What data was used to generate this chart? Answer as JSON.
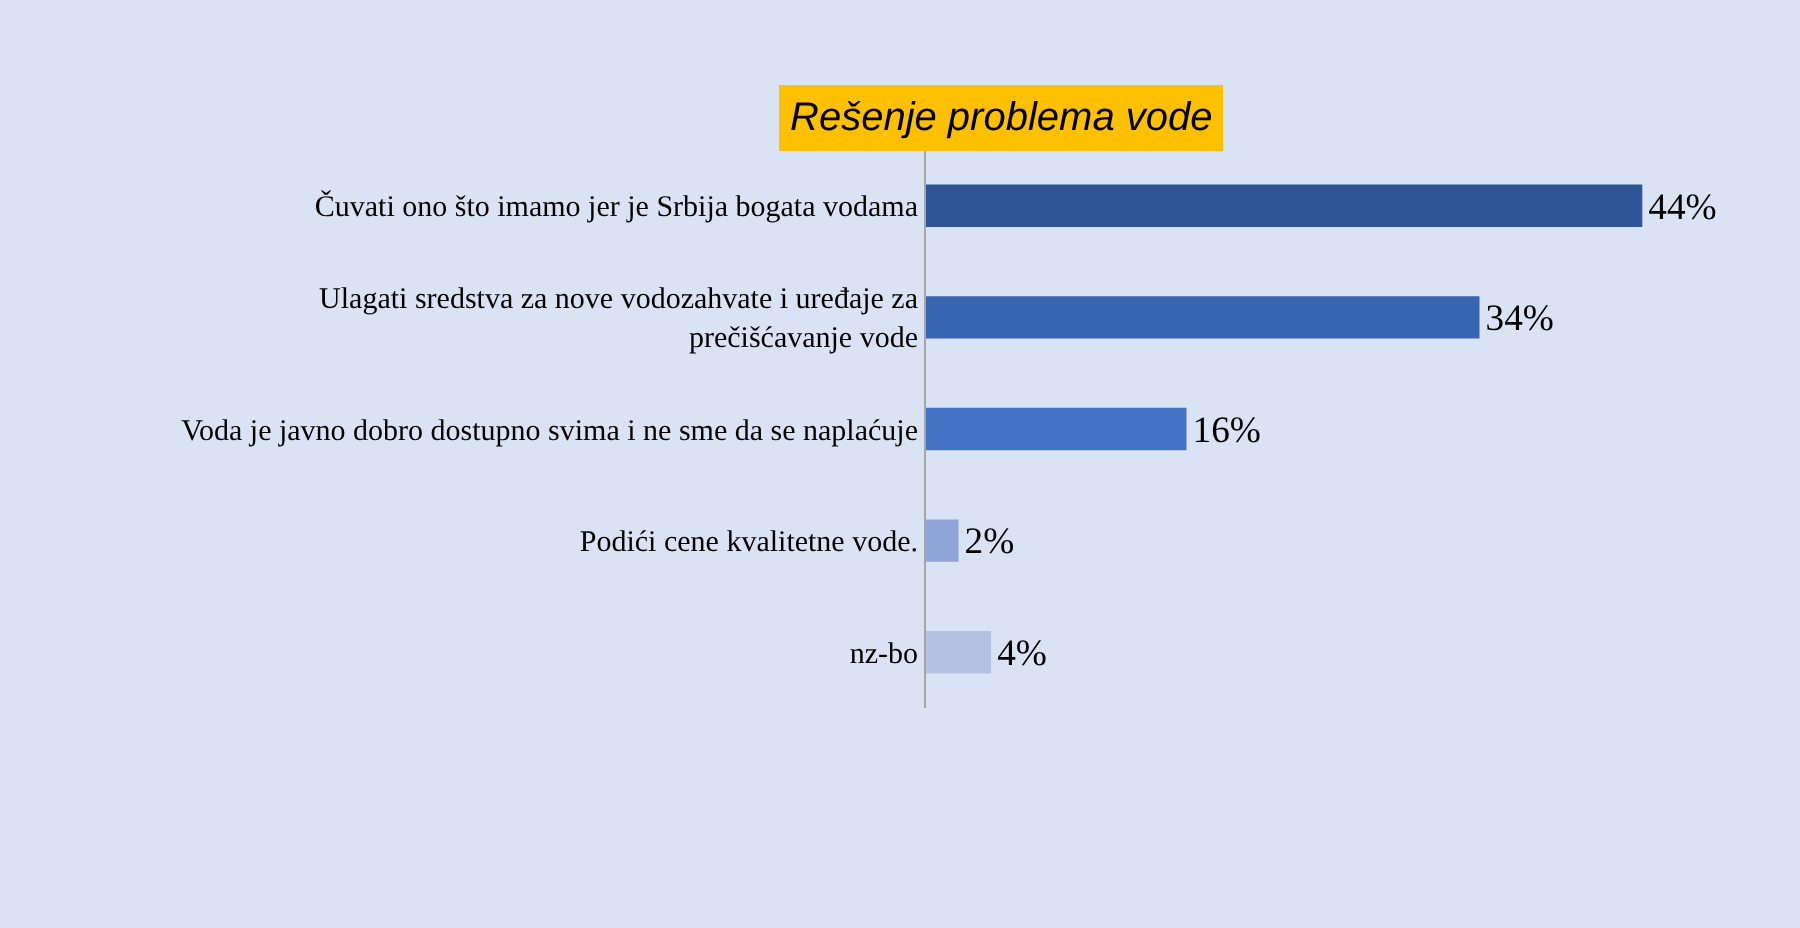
{
  "chart_data": {
    "type": "bar",
    "orientation": "horizontal",
    "title": "Rešenje problema vode",
    "categories": [
      "Čuvati ono što imamo jer je Srbija bogata vodama",
      "Ulagati sredstva za nove vodozahvate i uređaje za prečišćavanje vode",
      "Voda je javno dobro dostupno svima i ne sme da se naplaćuje",
      "Podići cene kvalitetne vode.",
      "nz-bo"
    ],
    "values": [
      44,
      34,
      16,
      2,
      4
    ],
    "colors": [
      "#2f5597",
      "#3864b4",
      "#4472c4",
      "#8fa5d8",
      "#b4c0e4"
    ],
    "value_labels": [
      "44%",
      "34%",
      "16%",
      "2%",
      "4%"
    ],
    "tick_labels": "y"
  }
}
